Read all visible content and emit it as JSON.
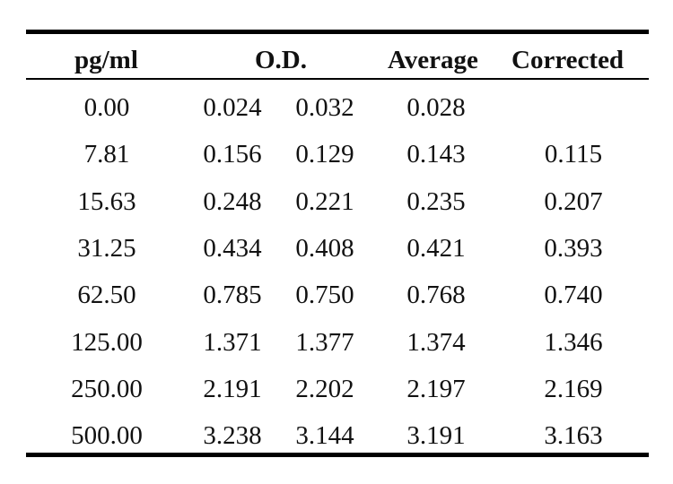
{
  "table": {
    "headers": {
      "conc": "pg/ml",
      "od": "O.D.",
      "average": "Average",
      "corrected": "Corrected"
    },
    "rows": [
      {
        "conc": "0.00",
        "od1": "0.024",
        "od2": "0.032",
        "average": "0.028",
        "corrected": ""
      },
      {
        "conc": "7.81",
        "od1": "0.156",
        "od2": "0.129",
        "average": "0.143",
        "corrected": "0.115"
      },
      {
        "conc": "15.63",
        "od1": "0.248",
        "od2": "0.221",
        "average": "0.235",
        "corrected": "0.207"
      },
      {
        "conc": "31.25",
        "od1": "0.434",
        "od2": "0.408",
        "average": "0.421",
        "corrected": "0.393"
      },
      {
        "conc": "62.50",
        "od1": "0.785",
        "od2": "0.750",
        "average": "0.768",
        "corrected": "0.740"
      },
      {
        "conc": "125.00",
        "od1": "1.371",
        "od2": "1.377",
        "average": "1.374",
        "corrected": "1.346"
      },
      {
        "conc": "250.00",
        "od1": "2.191",
        "od2": "2.202",
        "average": "2.197",
        "corrected": "2.169"
      },
      {
        "conc": "500.00",
        "od1": "3.238",
        "od2": "3.144",
        "average": "3.191",
        "corrected": "3.163"
      }
    ]
  }
}
